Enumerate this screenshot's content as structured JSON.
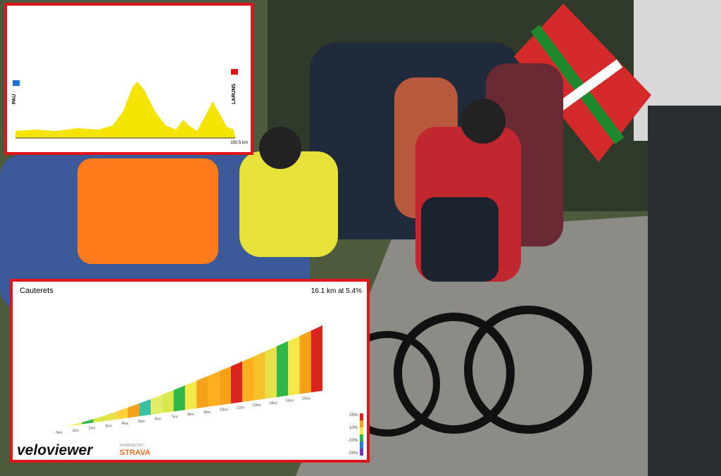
{
  "top_profile": {
    "start": "PAU",
    "finish": "LARUNS",
    "distance": "192.5 km"
  },
  "bottom_profile": {
    "title": "Cauterets",
    "summary": "16.1 km at 5.4%",
    "km_labels": [
      "0km",
      "1km",
      "2km",
      "3km",
      "4km",
      "5km",
      "6km",
      "7km",
      "8km",
      "9km",
      "10km",
      "11km",
      "12km",
      "13km",
      "14km",
      "15km"
    ],
    "legend": [
      "25%",
      "10%",
      "-10%",
      "-25%"
    ],
    "brand": "veloviewer",
    "powered": "POWERED BY",
    "partner": "STRAVA"
  }
}
